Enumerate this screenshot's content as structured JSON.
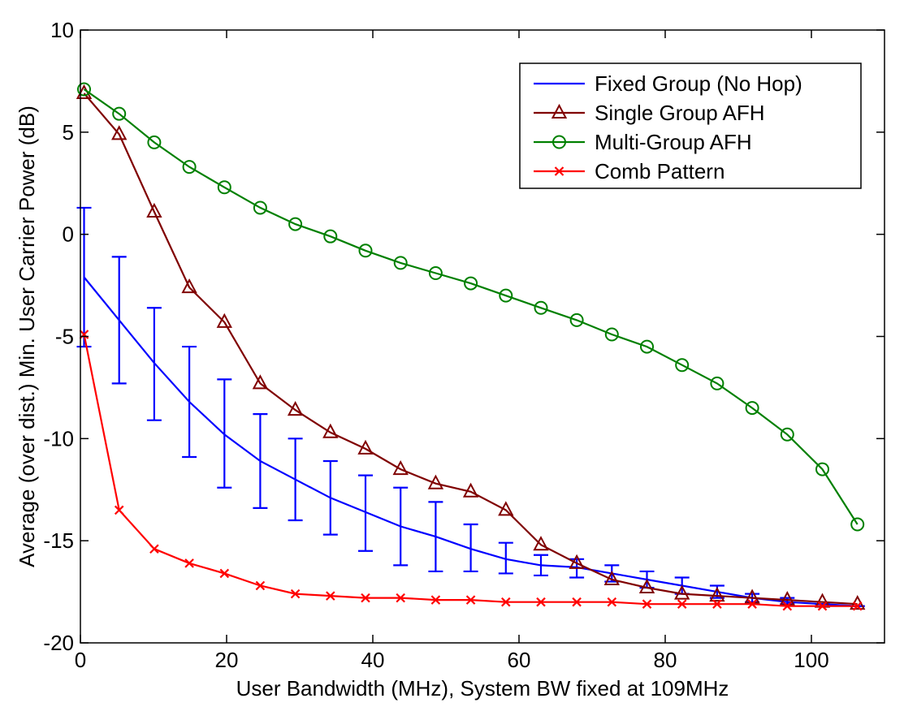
{
  "chart_data": {
    "type": "line",
    "xlabel": "User Bandwidth (MHz), System BW fixed at 109MHz",
    "ylabel": "Average (over dist.) Min. User Carrier Power (dB)",
    "xlim": [
      0,
      110
    ],
    "ylim": [
      -20,
      10
    ],
    "xticks": [
      0,
      20,
      40,
      60,
      80,
      100
    ],
    "yticks": [
      -20,
      -15,
      -10,
      -5,
      0,
      5,
      10
    ],
    "grid": false,
    "legend_position": "top-right",
    "x": [
      0.5,
      5.3,
      10.1,
      14.9,
      19.7,
      24.6,
      29.4,
      34.2,
      39.0,
      43.8,
      48.6,
      53.4,
      58.2,
      63.0,
      67.9,
      72.7,
      77.5,
      82.3,
      87.1,
      91.9,
      96.7,
      101.5,
      106.3
    ],
    "series": [
      {
        "name": "Fixed Group (No Hop)",
        "color": "#0000ff",
        "marker": "none",
        "values": [
          -2.1,
          -4.2,
          -6.3,
          -8.2,
          -9.8,
          -11.1,
          -12.0,
          -12.9,
          -13.6,
          -14.3,
          -14.8,
          -15.4,
          -15.9,
          -16.2,
          -16.3,
          -16.6,
          -16.9,
          -17.2,
          -17.5,
          -17.8,
          -18.0,
          -18.1,
          -18.2
        ],
        "error_low": [
          -5.5,
          -7.3,
          -9.1,
          -10.9,
          -12.4,
          -13.4,
          -14.0,
          -14.7,
          -15.5,
          -16.2,
          -16.5,
          -16.5,
          -16.6,
          -16.7,
          -16.8,
          -17.0,
          -17.3,
          -17.6,
          -17.8,
          -18.0,
          -18.1,
          -18.1,
          -18.2
        ],
        "error_high": [
          1.3,
          -1.1,
          -3.6,
          -5.5,
          -7.1,
          -8.8,
          -10.0,
          -11.1,
          -11.8,
          -12.4,
          -13.1,
          -14.2,
          -15.1,
          -15.7,
          -15.9,
          -16.2,
          -16.5,
          -16.8,
          -17.2,
          -17.6,
          -17.8,
          -18.1,
          -18.2
        ]
      },
      {
        "name": "Single Group AFH",
        "color": "#800000",
        "marker": "triangle",
        "values": [
          6.9,
          4.9,
          1.1,
          -2.6,
          -4.3,
          -7.3,
          -8.6,
          -9.7,
          -10.5,
          -11.5,
          -12.2,
          -12.6,
          -13.5,
          -15.2,
          -16.1,
          -16.9,
          -17.3,
          -17.6,
          -17.7,
          -17.8,
          -17.9,
          -18.0,
          -18.1
        ]
      },
      {
        "name": "Multi-Group AFH",
        "color": "#008000",
        "marker": "circle",
        "values": [
          7.1,
          5.9,
          4.5,
          3.3,
          2.3,
          1.3,
          0.5,
          -0.1,
          -0.8,
          -1.4,
          -1.9,
          -2.4,
          -3.0,
          -3.6,
          -4.2,
          -4.9,
          -5.5,
          -6.4,
          -7.3,
          -8.5,
          -9.8,
          -11.5,
          -14.2
        ]
      },
      {
        "name": "Comb Pattern",
        "color": "#ff0000",
        "marker": "x",
        "values": [
          -4.9,
          -13.5,
          -15.4,
          -16.1,
          -16.6,
          -17.2,
          -17.6,
          -17.7,
          -17.8,
          -17.8,
          -17.9,
          -17.9,
          -18.0,
          -18.0,
          -18.0,
          -18.0,
          -18.1,
          -18.1,
          -18.1,
          -18.1,
          -18.2,
          -18.2,
          -18.2
        ]
      }
    ]
  }
}
